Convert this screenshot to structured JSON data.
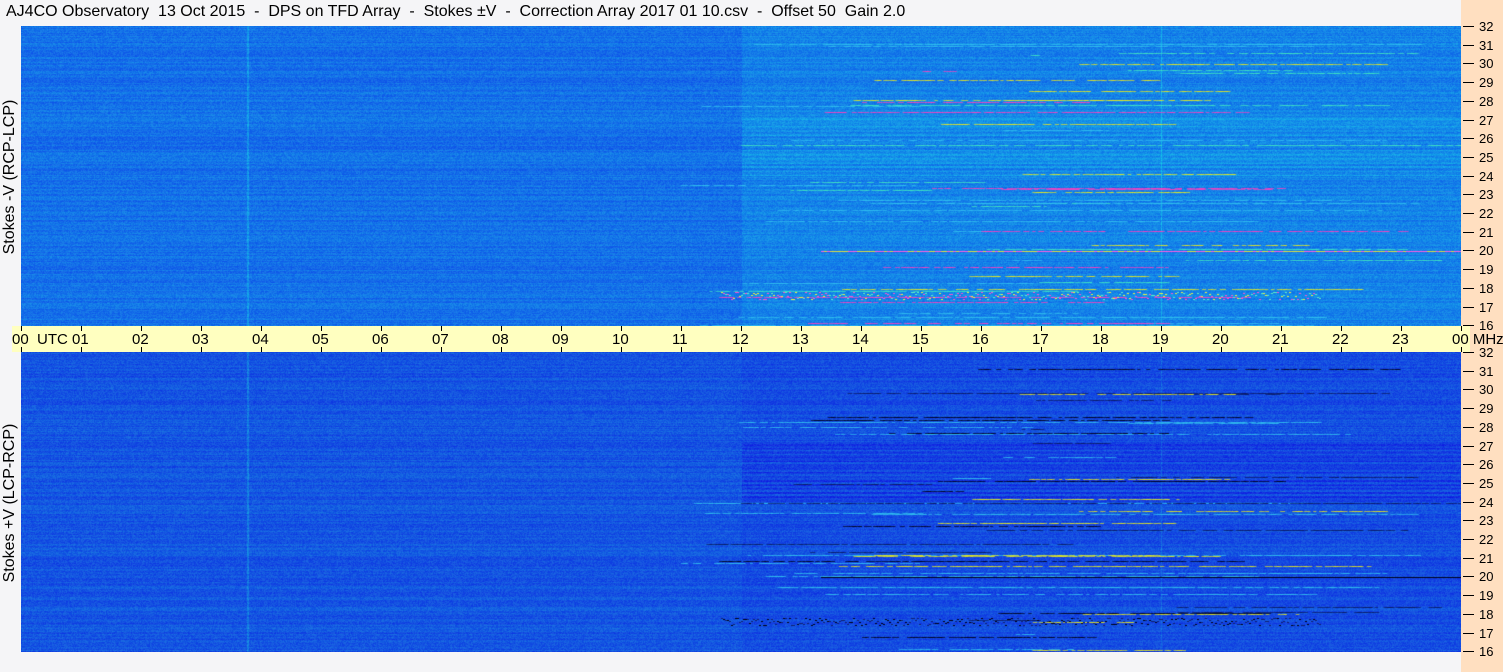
{
  "title": "AJ4CO Observatory  13 Oct 2015  -  DPS on TFD Array  -  Stokes ±V  -  Correction Array 2017 01 10.csv  -  Offset 50  Gain 2.0",
  "colors": {
    "title_bar": "#f5f5f7",
    "time_axis": "#ffffc0",
    "freq_panel": "#ffdfc0",
    "top_background": "#1a6fe6",
    "bottom_background": "#1450dc"
  },
  "chart_data": [
    {
      "type": "heatmap",
      "panel": "top",
      "ylabel": "Stokes -V (RCP-LCP)",
      "x_unit": "UTC",
      "y_unit": "MHz",
      "xlim": [
        0,
        24
      ],
      "ylim": [
        16,
        32
      ],
      "xticks": [
        "00",
        "01",
        "02",
        "03",
        "04",
        "05",
        "06",
        "07",
        "08",
        "09",
        "10",
        "11",
        "12",
        "13",
        "14",
        "15",
        "16",
        "17",
        "18",
        "19",
        "20",
        "21",
        "22",
        "23",
        "00"
      ],
      "yticks": [
        32,
        31,
        30,
        29,
        28,
        27,
        26,
        25,
        24,
        23,
        22,
        21,
        20,
        19,
        18,
        17,
        16
      ]
    },
    {
      "type": "heatmap",
      "panel": "bottom",
      "ylabel": "Stokes +V (LCP-RCP)",
      "x_unit": "UTC",
      "y_unit": "MHz",
      "xlim": [
        0,
        24
      ],
      "ylim": [
        16,
        32
      ],
      "xticks": [
        "00",
        "01",
        "02",
        "03",
        "04",
        "05",
        "06",
        "07",
        "08",
        "09",
        "10",
        "11",
        "12",
        "13",
        "14",
        "15",
        "16",
        "17",
        "18",
        "19",
        "20",
        "21",
        "22",
        "23",
        "00"
      ],
      "yticks": [
        32,
        31,
        30,
        29,
        28,
        27,
        26,
        25,
        24,
        23,
        22,
        21,
        20,
        19,
        18,
        17,
        16
      ]
    }
  ],
  "axis": {
    "utc_label": "UTC",
    "mhz_label": "MHz"
  }
}
